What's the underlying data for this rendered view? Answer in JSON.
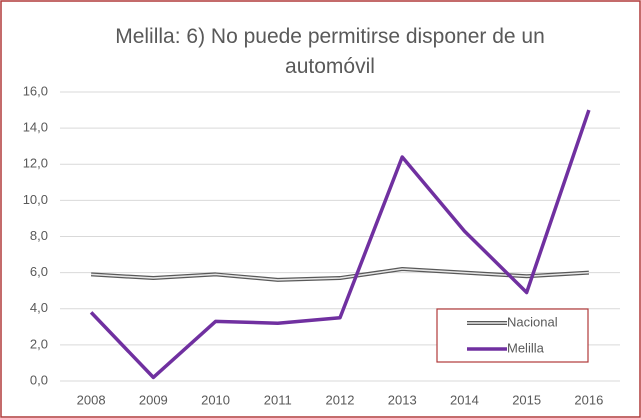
{
  "chart_data": {
    "type": "line",
    "title": "Melilla: 6) No puede permitirse disponer de un automóvil",
    "categories": [
      "2008",
      "2009",
      "2010",
      "2011",
      "2012",
      "2013",
      "2014",
      "2015",
      "2016"
    ],
    "series": [
      {
        "name": "Nacional",
        "color": "#7f7f7f",
        "values": [
          5.9,
          5.7,
          5.9,
          5.6,
          5.7,
          6.2,
          6.0,
          5.8,
          6.0
        ]
      },
      {
        "name": "Melilla",
        "color": "#7030a0",
        "values": [
          3.8,
          0.2,
          3.3,
          3.2,
          3.5,
          12.4,
          8.3,
          4.9,
          15.0
        ]
      }
    ],
    "ylim": [
      0,
      16
    ],
    "yticks": [
      {
        "value": 0,
        "label": "0,0"
      },
      {
        "value": 2,
        "label": "2,0"
      },
      {
        "value": 4,
        "label": "4,0"
      },
      {
        "value": 6,
        "label": "6,0"
      },
      {
        "value": 8,
        "label": "8,0"
      },
      {
        "value": 10,
        "label": "10,0"
      },
      {
        "value": 12,
        "label": "12,0"
      },
      {
        "value": 14,
        "label": "14,0"
      },
      {
        "value": 16,
        "label": "16,0"
      }
    ],
    "grid": true,
    "legend": "lower right"
  }
}
